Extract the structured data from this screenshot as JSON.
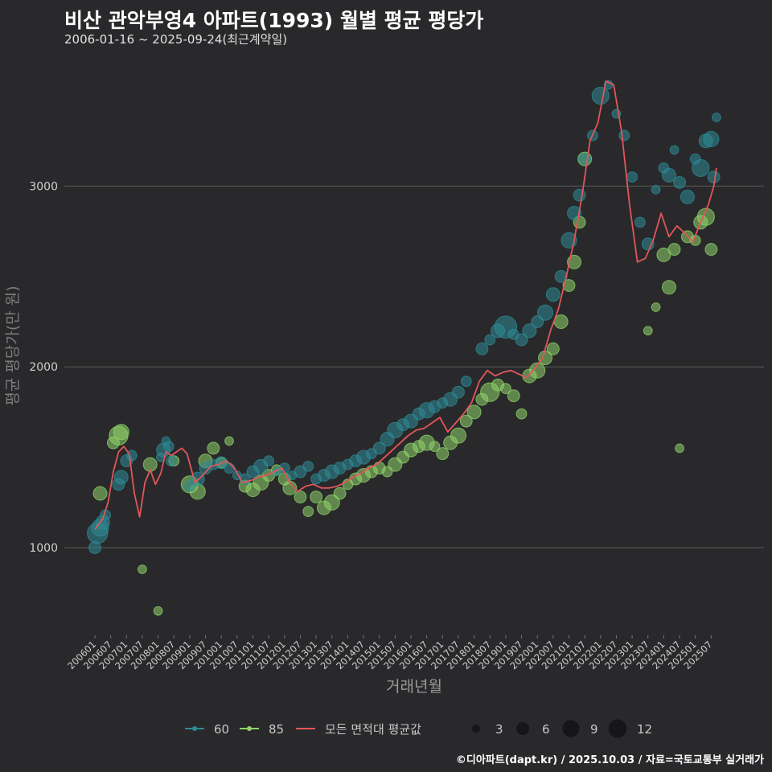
{
  "header": {
    "title": "비산 관악부영4 아파트(1993) 월별 평균 평당가",
    "subtitle": "2006-01-16 ~ 2025-09-24(최근계약일)"
  },
  "footer": {
    "credit": "©디아파트(dapt.kr) / 2025.10.03 / 자료=국토교통부 실거래가"
  },
  "colors": {
    "background": "#29292b",
    "grid": "#5a5a5a",
    "series_60": "#2e8b95",
    "series_85": "#8fd36a",
    "avg_line": "#e0575b",
    "text_muted": "#9a9a9a",
    "size_dot": "#161618"
  },
  "chart_data": {
    "type": "scatter",
    "title": "비산 관악부영4 아파트(1993) 월별 평균 평당가",
    "xlabel": "거래년월",
    "ylabel": "평균 평당가(만 원)",
    "ylim": [
      480,
      3680
    ],
    "y_ticks": [
      1000,
      2000,
      3000
    ],
    "grid": true,
    "legend_position": "bottom",
    "x_ticks": [
      "200601",
      "200607",
      "200701",
      "200707",
      "200801",
      "200807",
      "200901",
      "200907",
      "201001",
      "201007",
      "201101",
      "201107",
      "201201",
      "201207",
      "201301",
      "201307",
      "201401",
      "201407",
      "201501",
      "201507",
      "201601",
      "201607",
      "201701",
      "201707",
      "201801",
      "201807",
      "201901",
      "201907",
      "202001",
      "202007",
      "202101",
      "202107",
      "202201",
      "202207",
      "202301",
      "202307",
      "202401",
      "202407",
      "202501",
      "202507"
    ],
    "legend": {
      "series_labels": [
        "60",
        "85",
        "모든 면적대 평균값"
      ],
      "size_values": [
        "3",
        "6",
        "9",
        "12"
      ]
    },
    "series": [
      {
        "name": "60",
        "points": [
          [
            "2006-01",
            1000,
            5
          ],
          [
            "2006-02",
            1080,
            10
          ],
          [
            "2006-03",
            1110,
            8
          ],
          [
            "2006-04",
            1140,
            6
          ],
          [
            "2006-05",
            1180,
            4
          ],
          [
            "2006-10",
            1350,
            5
          ],
          [
            "2006-11",
            1390,
            6
          ],
          [
            "2007-01",
            1480,
            5
          ],
          [
            "2007-03",
            1510,
            4
          ],
          [
            "2008-02",
            1500,
            3
          ],
          [
            "2008-03",
            1540,
            6
          ],
          [
            "2008-04",
            1590,
            3
          ],
          [
            "2008-05",
            1560,
            4
          ],
          [
            "2008-06",
            1480,
            4
          ],
          [
            "2009-01",
            1340,
            4
          ],
          [
            "2009-04",
            1380,
            6
          ],
          [
            "2009-07",
            1440,
            5
          ],
          [
            "2009-10",
            1460,
            4
          ],
          [
            "2010-01",
            1470,
            5
          ],
          [
            "2010-04",
            1440,
            4
          ],
          [
            "2010-07",
            1400,
            3
          ],
          [
            "2010-10",
            1380,
            4
          ],
          [
            "2011-01",
            1420,
            5
          ],
          [
            "2011-04",
            1450,
            6
          ],
          [
            "2011-07",
            1480,
            4
          ],
          [
            "2011-10",
            1420,
            3
          ],
          [
            "2012-01",
            1440,
            4
          ],
          [
            "2012-04",
            1400,
            3
          ],
          [
            "2012-07",
            1420,
            5
          ],
          [
            "2012-10",
            1450,
            4
          ],
          [
            "2013-01",
            1380,
            4
          ],
          [
            "2013-04",
            1400,
            5
          ],
          [
            "2013-07",
            1420,
            6
          ],
          [
            "2013-10",
            1440,
            5
          ],
          [
            "2014-01",
            1460,
            4
          ],
          [
            "2014-04",
            1480,
            5
          ],
          [
            "2014-07",
            1500,
            6
          ],
          [
            "2014-10",
            1520,
            4
          ],
          [
            "2015-01",
            1550,
            5
          ],
          [
            "2015-04",
            1600,
            6
          ],
          [
            "2015-07",
            1650,
            7
          ],
          [
            "2015-10",
            1680,
            5
          ],
          [
            "2016-01",
            1700,
            6
          ],
          [
            "2016-04",
            1740,
            5
          ],
          [
            "2016-07",
            1760,
            7
          ],
          [
            "2016-10",
            1780,
            5
          ],
          [
            "2017-01",
            1800,
            4
          ],
          [
            "2017-04",
            1820,
            6
          ],
          [
            "2017-07",
            1860,
            5
          ],
          [
            "2017-10",
            1920,
            4
          ],
          [
            "2018-04",
            2100,
            5
          ],
          [
            "2018-07",
            2150,
            4
          ],
          [
            "2018-10",
            2200,
            6
          ],
          [
            "2019-01",
            2220,
            11
          ],
          [
            "2019-04",
            2180,
            4
          ],
          [
            "2019-07",
            2150,
            5
          ],
          [
            "2019-10",
            2200,
            6
          ],
          [
            "2020-01",
            2250,
            5
          ],
          [
            "2020-04",
            2300,
            7
          ],
          [
            "2020-07",
            2400,
            6
          ],
          [
            "2020-10",
            2500,
            5
          ],
          [
            "2021-01",
            2700,
            7
          ],
          [
            "2021-03",
            2850,
            6
          ],
          [
            "2021-05",
            2950,
            5
          ],
          [
            "2021-07",
            3150,
            5
          ],
          [
            "2021-10",
            3280,
            4
          ],
          [
            "2022-01",
            3500,
            8
          ],
          [
            "2022-04",
            3560,
            3
          ],
          [
            "2022-07",
            3400,
            3
          ],
          [
            "2022-10",
            3280,
            4
          ],
          [
            "2023-01",
            3050,
            4
          ],
          [
            "2023-04",
            2800,
            4
          ],
          [
            "2023-07",
            2680,
            5
          ],
          [
            "2023-10",
            2980,
            3
          ],
          [
            "2024-01",
            3100,
            4
          ],
          [
            "2024-03",
            3060,
            6
          ],
          [
            "2024-05",
            3200,
            3
          ],
          [
            "2024-07",
            3020,
            5
          ],
          [
            "2024-10",
            2940,
            6
          ],
          [
            "2025-01",
            3150,
            4
          ],
          [
            "2025-03",
            3100,
            8
          ],
          [
            "2025-05",
            3250,
            6
          ],
          [
            "2025-07",
            3260,
            7
          ],
          [
            "2025-08",
            3050,
            5
          ],
          [
            "2025-09",
            3380,
            3
          ]
        ]
      },
      {
        "name": "85",
        "points": [
          [
            "2006-03",
            1300,
            6
          ],
          [
            "2006-08",
            1580,
            5
          ],
          [
            "2006-10",
            1620,
            9
          ],
          [
            "2006-11",
            1640,
            7
          ],
          [
            "2007-07",
            880,
            3
          ],
          [
            "2007-10",
            1460,
            6
          ],
          [
            "2008-01",
            650,
            3
          ],
          [
            "2008-07",
            1480,
            4
          ],
          [
            "2009-01",
            1350,
            8
          ],
          [
            "2009-04",
            1310,
            7
          ],
          [
            "2009-07",
            1480,
            6
          ],
          [
            "2009-10",
            1550,
            5
          ],
          [
            "2010-01",
            1470,
            4
          ],
          [
            "2010-04",
            1590,
            3
          ],
          [
            "2010-10",
            1340,
            5
          ],
          [
            "2011-01",
            1320,
            6
          ],
          [
            "2011-04",
            1360,
            7
          ],
          [
            "2011-07",
            1400,
            5
          ],
          [
            "2011-10",
            1430,
            4
          ],
          [
            "2012-01",
            1380,
            5
          ],
          [
            "2012-03",
            1330,
            6
          ],
          [
            "2012-07",
            1280,
            5
          ],
          [
            "2012-10",
            1200,
            4
          ],
          [
            "2013-01",
            1280,
            5
          ],
          [
            "2013-04",
            1220,
            6
          ],
          [
            "2013-07",
            1250,
            7
          ],
          [
            "2013-10",
            1300,
            5
          ],
          [
            "2014-01",
            1350,
            4
          ],
          [
            "2014-04",
            1380,
            5
          ],
          [
            "2014-07",
            1400,
            6
          ],
          [
            "2014-10",
            1420,
            5
          ],
          [
            "2015-01",
            1440,
            5
          ],
          [
            "2015-04",
            1420,
            4
          ],
          [
            "2015-07",
            1460,
            6
          ],
          [
            "2015-10",
            1500,
            5
          ],
          [
            "2016-01",
            1540,
            6
          ],
          [
            "2016-04",
            1560,
            5
          ],
          [
            "2016-07",
            1580,
            7
          ],
          [
            "2016-10",
            1560,
            4
          ],
          [
            "2017-01",
            1520,
            5
          ],
          [
            "2017-04",
            1580,
            6
          ],
          [
            "2017-07",
            1620,
            7
          ],
          [
            "2017-10",
            1700,
            5
          ],
          [
            "2018-01",
            1750,
            6
          ],
          [
            "2018-04",
            1820,
            5
          ],
          [
            "2018-07",
            1860,
            9
          ],
          [
            "2018-10",
            1900,
            5
          ],
          [
            "2019-01",
            1880,
            4
          ],
          [
            "2019-04",
            1840,
            5
          ],
          [
            "2019-07",
            1740,
            4
          ],
          [
            "2019-10",
            1950,
            6
          ],
          [
            "2020-01",
            1980,
            7
          ],
          [
            "2020-04",
            2050,
            6
          ],
          [
            "2020-07",
            2100,
            5
          ],
          [
            "2020-10",
            2250,
            6
          ],
          [
            "2021-01",
            2450,
            5
          ],
          [
            "2021-03",
            2580,
            6
          ],
          [
            "2021-05",
            2800,
            5
          ],
          [
            "2021-07",
            3150,
            6
          ],
          [
            "2023-07",
            2200,
            3
          ],
          [
            "2023-10",
            2330,
            3
          ],
          [
            "2024-01",
            2620,
            6
          ],
          [
            "2024-03",
            2440,
            6
          ],
          [
            "2024-05",
            2650,
            5
          ],
          [
            "2024-07",
            1550,
            3
          ],
          [
            "2024-10",
            2720,
            5
          ],
          [
            "2025-01",
            2700,
            4
          ],
          [
            "2025-03",
            2800,
            6
          ],
          [
            "2025-05",
            2830,
            8
          ],
          [
            "2025-07",
            2650,
            5
          ]
        ]
      },
      {
        "name": "모든 면적대 평균값",
        "points": [
          [
            "2006-01",
            1100
          ],
          [
            "2006-04",
            1160
          ],
          [
            "2006-06",
            1250
          ],
          [
            "2006-08",
            1420
          ],
          [
            "2006-10",
            1530
          ],
          [
            "2006-12",
            1560
          ],
          [
            "2007-02",
            1520
          ],
          [
            "2007-04",
            1300
          ],
          [
            "2007-06",
            1170
          ],
          [
            "2007-08",
            1360
          ],
          [
            "2007-10",
            1430
          ],
          [
            "2007-12",
            1350
          ],
          [
            "2008-02",
            1410
          ],
          [
            "2008-04",
            1530
          ],
          [
            "2008-06",
            1510
          ],
          [
            "2008-08",
            1530
          ],
          [
            "2008-10",
            1550
          ],
          [
            "2008-12",
            1520
          ],
          [
            "2009-03",
            1360
          ],
          [
            "2009-06",
            1400
          ],
          [
            "2009-09",
            1450
          ],
          [
            "2009-12",
            1460
          ],
          [
            "2010-03",
            1480
          ],
          [
            "2010-06",
            1440
          ],
          [
            "2010-09",
            1360
          ],
          [
            "2010-12",
            1370
          ],
          [
            "2011-03",
            1390
          ],
          [
            "2011-06",
            1400
          ],
          [
            "2011-09",
            1420
          ],
          [
            "2011-12",
            1440
          ],
          [
            "2012-03",
            1360
          ],
          [
            "2012-06",
            1310
          ],
          [
            "2012-09",
            1340
          ],
          [
            "2012-12",
            1350
          ],
          [
            "2013-03",
            1330
          ],
          [
            "2013-06",
            1330
          ],
          [
            "2013-09",
            1340
          ],
          [
            "2013-12",
            1360
          ],
          [
            "2014-03",
            1390
          ],
          [
            "2014-06",
            1410
          ],
          [
            "2014-09",
            1440
          ],
          [
            "2014-12",
            1460
          ],
          [
            "2015-03",
            1500
          ],
          [
            "2015-06",
            1540
          ],
          [
            "2015-09",
            1580
          ],
          [
            "2015-12",
            1620
          ],
          [
            "2016-03",
            1650
          ],
          [
            "2016-06",
            1660
          ],
          [
            "2016-09",
            1690
          ],
          [
            "2016-12",
            1720
          ],
          [
            "2017-03",
            1640
          ],
          [
            "2017-06",
            1690
          ],
          [
            "2017-09",
            1740
          ],
          [
            "2017-12",
            1800
          ],
          [
            "2018-03",
            1920
          ],
          [
            "2018-06",
            1980
          ],
          [
            "2018-09",
            1950
          ],
          [
            "2018-12",
            1970
          ],
          [
            "2019-03",
            1980
          ],
          [
            "2019-06",
            1960
          ],
          [
            "2019-09",
            1940
          ],
          [
            "2019-12",
            1990
          ],
          [
            "2020-03",
            2050
          ],
          [
            "2020-06",
            2200
          ],
          [
            "2020-09",
            2320
          ],
          [
            "2020-12",
            2500
          ],
          [
            "2021-03",
            2700
          ],
          [
            "2021-06",
            2950
          ],
          [
            "2021-09",
            3250
          ],
          [
            "2021-12",
            3350
          ],
          [
            "2022-03",
            3580
          ],
          [
            "2022-06",
            3560
          ],
          [
            "2022-09",
            3300
          ],
          [
            "2022-12",
            2900
          ],
          [
            "2023-03",
            2580
          ],
          [
            "2023-06",
            2600
          ],
          [
            "2023-09",
            2700
          ],
          [
            "2023-12",
            2850
          ],
          [
            "2024-03",
            2720
          ],
          [
            "2024-06",
            2780
          ],
          [
            "2024-09",
            2740
          ],
          [
            "2024-12",
            2690
          ],
          [
            "2025-03",
            2800
          ],
          [
            "2025-06",
            2900
          ],
          [
            "2025-08",
            3000
          ],
          [
            "2025-09",
            3100
          ]
        ]
      }
    ]
  }
}
